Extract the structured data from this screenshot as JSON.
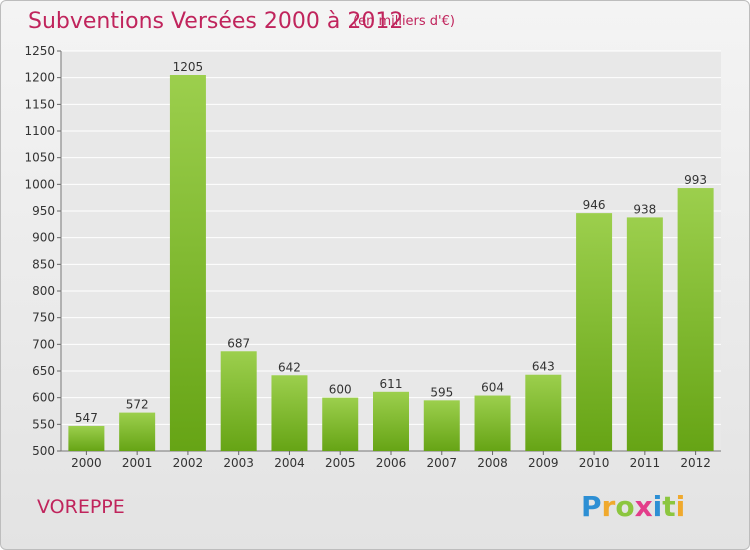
{
  "chart_data": {
    "type": "bar",
    "title": "Subventions Versées 2000 à 2012",
    "subtitle": "(en milliers d'€)",
    "categories": [
      "2000",
      "2001",
      "2002",
      "2003",
      "2004",
      "2005",
      "2006",
      "2007",
      "2008",
      "2009",
      "2010",
      "2011",
      "2012"
    ],
    "values": [
      547,
      572,
      1205,
      687,
      642,
      600,
      611,
      595,
      604,
      643,
      946,
      938,
      993
    ],
    "ylim": [
      500,
      1250
    ],
    "yticks": [
      500,
      550,
      600,
      650,
      700,
      750,
      800,
      850,
      900,
      950,
      1000,
      1050,
      1100,
      1150,
      1200,
      1250
    ],
    "grid": true,
    "colors": {
      "bar_light": "#9ccf4d",
      "bar_dark": "#66a415",
      "accent": "#c0245c"
    }
  },
  "footer": {
    "place": "VOREPPE"
  },
  "logo": {
    "text": "Proxiti",
    "letters": [
      "P",
      "r",
      "o",
      "x",
      "i",
      "t",
      "i"
    ],
    "colors": [
      "#2d8fd4",
      "#f0a92d",
      "#8cc63f",
      "#e33d8a",
      "#2d8fd4",
      "#8cc63f",
      "#f0a92d"
    ]
  }
}
